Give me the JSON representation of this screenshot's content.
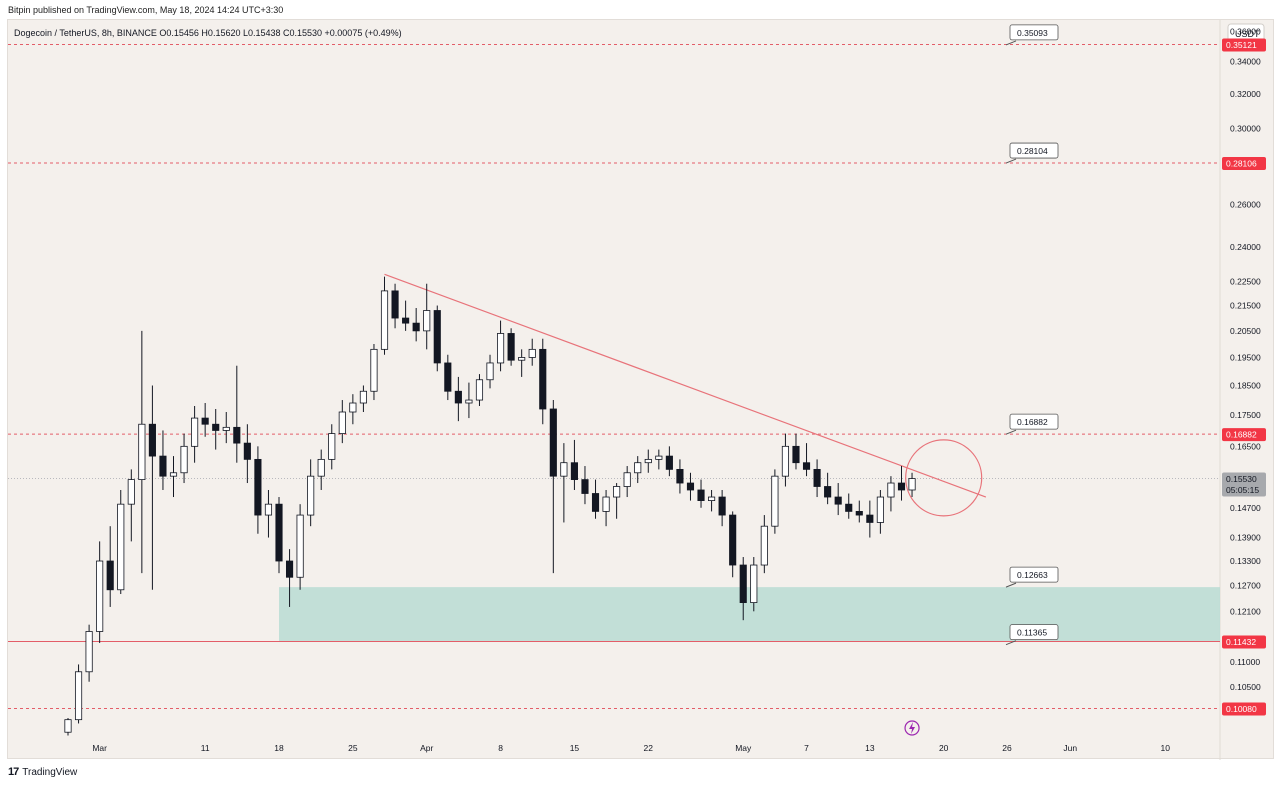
{
  "header": {
    "published_by": "Bitpin published on TradingView.com, May 18, 2024 14:24 UTC+3:30"
  },
  "footer": {
    "logo_glyph": "17",
    "brand": "TradingView"
  },
  "colors": {
    "background": "#f4f0ec",
    "candle": "#131722",
    "resistance_line": "#e8737a",
    "level_line": "#e35d68",
    "support_zone": "#b8dcd4",
    "label_red": "#f23645",
    "lightning": "#9c27b0"
  },
  "chart_data": {
    "type": "candlestick",
    "symbol_info": {
      "name": "Dogecoin / TetherUS, 8h, BINANCE",
      "open": "O0.15456",
      "high": "H0.15620",
      "low": "L0.15438",
      "close": "C0.15530",
      "change": "+0.00075 (+0.49%)"
    },
    "currency": "USDT",
    "x_start": "2024-02-27",
    "x_end": "2024-06-15",
    "ylim": [
      0.095,
      0.365
    ],
    "y_ticks": [
      "0.36000",
      "0.34000",
      "0.32000",
      "0.30000",
      "0.26000",
      "0.24000",
      "0.22500",
      "0.21500",
      "0.20500",
      "0.19500",
      "0.18500",
      "0.17500",
      "0.16500",
      "0.14700",
      "0.13900",
      "0.13300",
      "0.12700",
      "0.12100",
      "0.11000",
      "0.10500"
    ],
    "x_ticks": [
      {
        "date": "2024-03-01",
        "label": "Mar"
      },
      {
        "date": "2024-03-11",
        "label": "11"
      },
      {
        "date": "2024-03-18",
        "label": "18"
      },
      {
        "date": "2024-03-25",
        "label": "25"
      },
      {
        "date": "2024-04-01",
        "label": "Apr"
      },
      {
        "date": "2024-04-08",
        "label": "8"
      },
      {
        "date": "2024-04-15",
        "label": "15"
      },
      {
        "date": "2024-04-22",
        "label": "22"
      },
      {
        "date": "2024-05-01",
        "label": "May"
      },
      {
        "date": "2024-05-07",
        "label": "7"
      },
      {
        "date": "2024-05-13",
        "label": "13"
      },
      {
        "date": "2024-05-20",
        "label": "20"
      },
      {
        "date": "2024-05-26",
        "label": "26"
      },
      {
        "date": "2024-06-01",
        "label": "Jun"
      },
      {
        "date": "2024-06-10",
        "label": "10"
      }
    ],
    "horizontal_levels": [
      {
        "price": 0.35121,
        "label": "0.35121",
        "style": "dashed"
      },
      {
        "price": 0.28106,
        "label": "0.28106",
        "style": "dashed"
      },
      {
        "price": 0.16882,
        "label": "0.16882",
        "style": "dashed"
      },
      {
        "price": 0.11432,
        "label": "0.11432",
        "style": "solid"
      },
      {
        "price": 0.1008,
        "label": "0.10080",
        "style": "dashed"
      }
    ],
    "callouts": [
      {
        "price": 0.35093,
        "label": "0.35093"
      },
      {
        "price": 0.28104,
        "label": "0.28104"
      },
      {
        "price": 0.16882,
        "label": "0.16882"
      },
      {
        "price": 0.12663,
        "label": "0.12663"
      },
      {
        "price": 0.11365,
        "label": "0.11365"
      }
    ],
    "current_price": {
      "price": 0.1553,
      "label": "0.15530",
      "countdown": "05:05:15"
    },
    "support_zone": {
      "from": "2024-03-18",
      "to": "2024-06-15",
      "low": 0.11432,
      "high": 0.12663
    },
    "trendline": {
      "start": {
        "date": "2024-03-28",
        "price": 0.228
      },
      "end": {
        "date": "2024-05-24",
        "price": 0.15
      }
    },
    "highlight_circle": {
      "date": "2024-05-20",
      "price": 0.1555
    },
    "lightning_marker_date": "2024-05-17",
    "candles": [
      [
        "2024-02-27",
        0.0964,
        0.099,
        0.0958,
        0.0987
      ],
      [
        "2024-02-28",
        0.0987,
        0.1095,
        0.098,
        0.108
      ],
      [
        "2024-02-29",
        0.108,
        0.118,
        0.106,
        0.1165
      ],
      [
        "2024-03-01",
        0.1165,
        0.138,
        0.114,
        0.133
      ],
      [
        "2024-03-02",
        0.133,
        0.142,
        0.122,
        0.126
      ],
      [
        "2024-03-03",
        0.126,
        0.152,
        0.125,
        0.148
      ],
      [
        "2024-03-04",
        0.148,
        0.158,
        0.138,
        0.155
      ],
      [
        "2024-03-05",
        0.155,
        0.205,
        0.13,
        0.172
      ],
      [
        "2024-03-06",
        0.172,
        0.185,
        0.126,
        0.162
      ],
      [
        "2024-03-07",
        0.162,
        0.17,
        0.152,
        0.156
      ],
      [
        "2024-03-08",
        0.156,
        0.162,
        0.15,
        0.157
      ],
      [
        "2024-03-09",
        0.157,
        0.169,
        0.154,
        0.165
      ],
      [
        "2024-03-10",
        0.165,
        0.178,
        0.16,
        0.174
      ],
      [
        "2024-03-11",
        0.174,
        0.179,
        0.168,
        0.172
      ],
      [
        "2024-03-12",
        0.172,
        0.177,
        0.164,
        0.17
      ],
      [
        "2024-03-13",
        0.17,
        0.176,
        0.166,
        0.171
      ],
      [
        "2024-03-14",
        0.171,
        0.192,
        0.16,
        0.166
      ],
      [
        "2024-03-15",
        0.166,
        0.172,
        0.154,
        0.161
      ],
      [
        "2024-03-16",
        0.161,
        0.165,
        0.14,
        0.145
      ],
      [
        "2024-03-17",
        0.145,
        0.152,
        0.139,
        0.148
      ],
      [
        "2024-03-18",
        0.148,
        0.15,
        0.13,
        0.133
      ],
      [
        "2024-03-19",
        0.133,
        0.136,
        0.122,
        0.129
      ],
      [
        "2024-03-20",
        0.129,
        0.148,
        0.126,
        0.145
      ],
      [
        "2024-03-21",
        0.145,
        0.161,
        0.142,
        0.156
      ],
      [
        "2024-03-22",
        0.156,
        0.164,
        0.152,
        0.161
      ],
      [
        "2024-03-23",
        0.161,
        0.172,
        0.158,
        0.169
      ],
      [
        "2024-03-24",
        0.169,
        0.18,
        0.166,
        0.176
      ],
      [
        "2024-03-25",
        0.176,
        0.182,
        0.172,
        0.179
      ],
      [
        "2024-03-26",
        0.179,
        0.185,
        0.176,
        0.183
      ],
      [
        "2024-03-27",
        0.183,
        0.2,
        0.18,
        0.198
      ],
      [
        "2024-03-28",
        0.198,
        0.227,
        0.196,
        0.221
      ],
      [
        "2024-03-29",
        0.221,
        0.224,
        0.206,
        0.21
      ],
      [
        "2024-03-30",
        0.21,
        0.217,
        0.205,
        0.208
      ],
      [
        "2024-03-31",
        0.208,
        0.214,
        0.201,
        0.205
      ],
      [
        "2024-04-01",
        0.205,
        0.224,
        0.198,
        0.213
      ],
      [
        "2024-04-02",
        0.213,
        0.215,
        0.19,
        0.193
      ],
      [
        "2024-04-03",
        0.193,
        0.196,
        0.18,
        0.183
      ],
      [
        "2024-04-04",
        0.183,
        0.188,
        0.173,
        0.179
      ],
      [
        "2024-04-05",
        0.179,
        0.186,
        0.174,
        0.18
      ],
      [
        "2024-04-06",
        0.18,
        0.189,
        0.178,
        0.187
      ],
      [
        "2024-04-07",
        0.187,
        0.196,
        0.184,
        0.193
      ],
      [
        "2024-04-08",
        0.193,
        0.209,
        0.19,
        0.204
      ],
      [
        "2024-04-09",
        0.204,
        0.206,
        0.192,
        0.194
      ],
      [
        "2024-04-10",
        0.194,
        0.198,
        0.188,
        0.195
      ],
      [
        "2024-04-11",
        0.195,
        0.202,
        0.192,
        0.198
      ],
      [
        "2024-04-12",
        0.198,
        0.202,
        0.172,
        0.177
      ],
      [
        "2024-04-13",
        0.177,
        0.18,
        0.13,
        0.156
      ],
      [
        "2024-04-14",
        0.156,
        0.166,
        0.143,
        0.16
      ],
      [
        "2024-04-15",
        0.16,
        0.167,
        0.152,
        0.155
      ],
      [
        "2024-04-16",
        0.155,
        0.159,
        0.148,
        0.151
      ],
      [
        "2024-04-17",
        0.151,
        0.155,
        0.144,
        0.146
      ],
      [
        "2024-04-18",
        0.146,
        0.152,
        0.142,
        0.15
      ],
      [
        "2024-04-19",
        0.15,
        0.154,
        0.144,
        0.153
      ],
      [
        "2024-04-20",
        0.153,
        0.159,
        0.15,
        0.157
      ],
      [
        "2024-04-21",
        0.157,
        0.162,
        0.154,
        0.16
      ],
      [
        "2024-04-22",
        0.16,
        0.164,
        0.157,
        0.161
      ],
      [
        "2024-04-23",
        0.161,
        0.164,
        0.158,
        0.162
      ],
      [
        "2024-04-24",
        0.162,
        0.165,
        0.156,
        0.158
      ],
      [
        "2024-04-25",
        0.158,
        0.161,
        0.151,
        0.154
      ],
      [
        "2024-04-26",
        0.154,
        0.157,
        0.149,
        0.152
      ],
      [
        "2024-04-27",
        0.152,
        0.155,
        0.147,
        0.149
      ],
      [
        "2024-04-28",
        0.149,
        0.152,
        0.146,
        0.15
      ],
      [
        "2024-04-29",
        0.15,
        0.152,
        0.142,
        0.145
      ],
      [
        "2024-04-30",
        0.145,
        0.146,
        0.129,
        0.132
      ],
      [
        "2024-05-01",
        0.132,
        0.134,
        0.119,
        0.123
      ],
      [
        "2024-05-02",
        0.123,
        0.134,
        0.121,
        0.132
      ],
      [
        "2024-05-03",
        0.132,
        0.145,
        0.13,
        0.142
      ],
      [
        "2024-05-04",
        0.142,
        0.158,
        0.14,
        0.156
      ],
      [
        "2024-05-05",
        0.156,
        0.169,
        0.153,
        0.165
      ],
      [
        "2024-05-06",
        0.165,
        0.169,
        0.158,
        0.16
      ],
      [
        "2024-05-07",
        0.16,
        0.166,
        0.156,
        0.158
      ],
      [
        "2024-05-08",
        0.158,
        0.161,
        0.15,
        0.153
      ],
      [
        "2024-05-09",
        0.153,
        0.157,
        0.148,
        0.15
      ],
      [
        "2024-05-10",
        0.15,
        0.154,
        0.145,
        0.148
      ],
      [
        "2024-05-11",
        0.148,
        0.151,
        0.144,
        0.146
      ],
      [
        "2024-05-12",
        0.146,
        0.149,
        0.143,
        0.145
      ],
      [
        "2024-05-13",
        0.145,
        0.149,
        0.139,
        0.143
      ],
      [
        "2024-05-14",
        0.143,
        0.152,
        0.14,
        0.15
      ],
      [
        "2024-05-15",
        0.15,
        0.156,
        0.146,
        0.154
      ],
      [
        "2024-05-16",
        0.154,
        0.159,
        0.149,
        0.152
      ],
      [
        "2024-05-17",
        0.152,
        0.157,
        0.15,
        0.1553
      ]
    ]
  }
}
